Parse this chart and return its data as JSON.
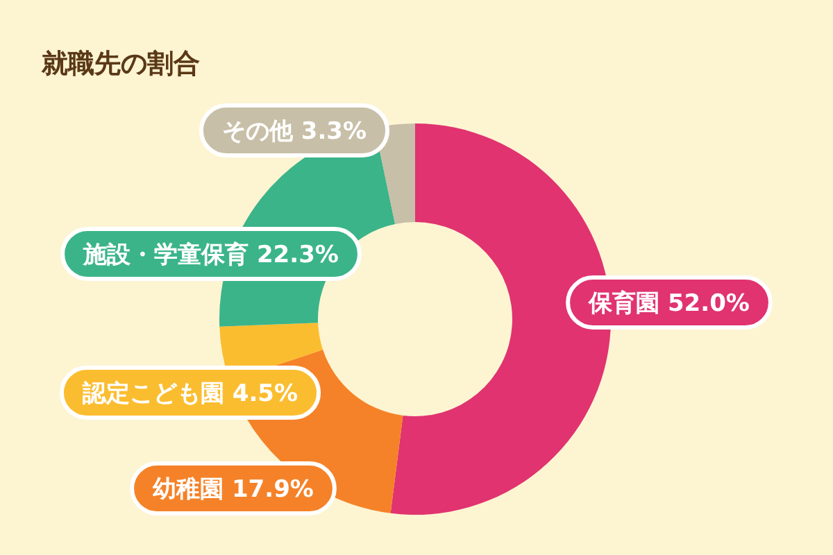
{
  "chart_data": {
    "type": "donut",
    "title": "就職先の割合",
    "categories": [
      "保育園",
      "幼稚園",
      "認定こども園",
      "施設・学童保育",
      "その他"
    ],
    "values": [
      52.0,
      17.9,
      4.5,
      22.3,
      3.3
    ],
    "value_labels": [
      "52.0%",
      "17.9%",
      "4.5%",
      "22.3%",
      "3.3%"
    ],
    "colors": [
      "#e03370",
      "#f58228",
      "#fbbd30",
      "#3bb48a",
      "#c8bfa8"
    ]
  }
}
